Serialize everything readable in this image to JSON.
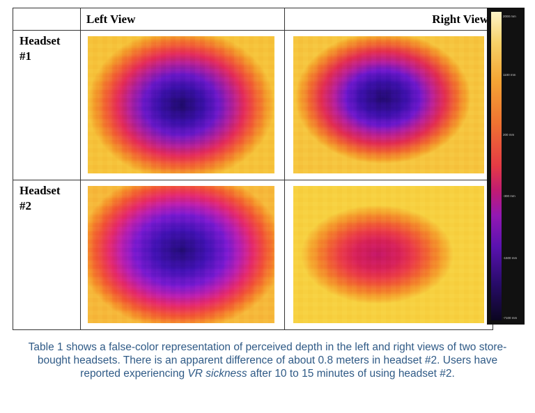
{
  "table": {
    "col_headers": [
      "Left View",
      "Right View"
    ],
    "rows": [
      {
        "label_line1": "Headset",
        "label_line2": "#1"
      },
      {
        "label_line1": "Headset",
        "label_line2": "#2"
      }
    ]
  },
  "colorbar": {
    "labels": [
      "2000 mm",
      "1100 mm",
      "200 mm",
      "-300 mm",
      "-1500 mm",
      "-7100 mm"
    ]
  },
  "caption": {
    "part1": "Table 1 shows a false-color representation of perceived depth in the left and right views of two store-bought headsets. There is an apparent difference of about 0.8 meters in headset #2. Users have reported experiencing ",
    "emphasis": "VR sickness",
    "part2": " after 10 to 15 minutes of using headset #2."
  },
  "colors": {
    "caption_text": "#2f5a86",
    "grid_border": "#333333"
  }
}
